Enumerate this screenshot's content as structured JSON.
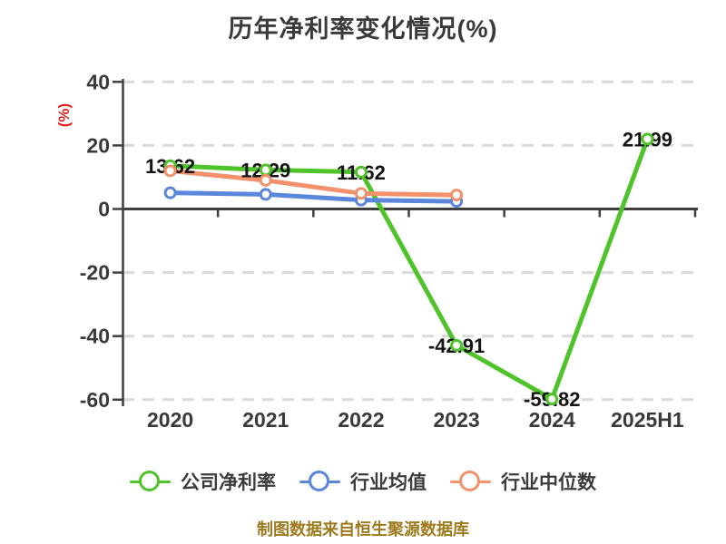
{
  "title": "历年净利率变化情况(%)",
  "y_axis_label": "(%)",
  "footer": "制图数据来自恒生聚源数据库",
  "colors": {
    "company_green": "#4FC32A",
    "industry_blue": "#5A86DC",
    "median_orange": "#F2916C",
    "axis": "#3F3F3F",
    "grid": "#D9D9D9",
    "tick_label": "#3A3A3A",
    "value_label": "#141414",
    "title": "#3A3A3A",
    "y_axis_label_red": "#E02121",
    "footer_gold": "#9E7A1E",
    "marker_fill": "#FFFFFF",
    "background": "#FFFFFF"
  },
  "chart_data": {
    "type": "line",
    "title": "历年净利率变化情况(%)",
    "ylabel": "(%)",
    "categories": [
      "2020",
      "2021",
      "2022",
      "2023",
      "2024",
      "2025H1"
    ],
    "series": [
      {
        "name": "公司净利率",
        "color": "#4FC32A",
        "values": [
          13.62,
          12.29,
          11.62,
          -42.91,
          -59.82,
          21.99
        ],
        "labels": [
          "13.62",
          "12.29",
          "11.62",
          "-42.91",
          "-59.82",
          "21.99"
        ],
        "show_labels": true
      },
      {
        "name": "行业均值",
        "color": "#5A86DC",
        "values": [
          5.1,
          4.6,
          2.8,
          2.4,
          null,
          null
        ],
        "show_labels": false
      },
      {
        "name": "行业中位数",
        "color": "#F2916C",
        "values": [
          12.0,
          9.0,
          4.9,
          4.4,
          null,
          null
        ],
        "show_labels": false
      }
    ],
    "yticks": [
      40,
      20,
      0,
      -20,
      -40,
      -60
    ],
    "ylim": [
      -66,
      44
    ],
    "grid": "horizontal-dashed",
    "legend_position": "bottom"
  }
}
